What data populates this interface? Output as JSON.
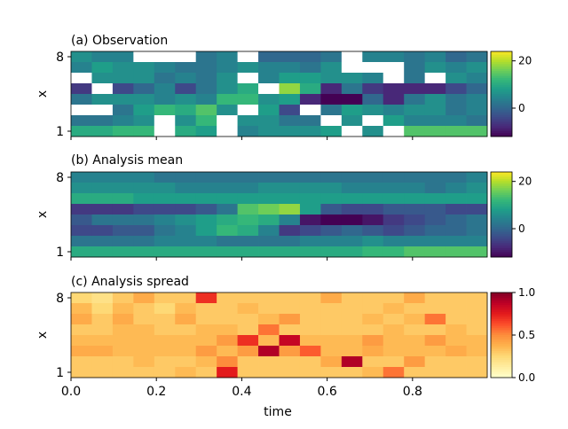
{
  "chart_data": [
    {
      "type": "heatmap",
      "title": "(a) Observation",
      "ylabel": "x",
      "xlabel": "",
      "y_tick_labels": [
        "8",
        "1"
      ],
      "x_tick_labels": [],
      "colormap": "viridis",
      "colorbar": {
        "ticks": [
          "20",
          "0"
        ],
        "tick_values": [
          20,
          0
        ],
        "range": [
          -12,
          24
        ]
      },
      "missing_color": "#ffffff",
      "x_count": 20,
      "y_count": 8,
      "grid": false,
      "values": [
        [
          6,
          4,
          4,
          null,
          null,
          null,
          2,
          4,
          null,
          0,
          0,
          0,
          2,
          null,
          4,
          4,
          2,
          4,
          0,
          2
        ],
        [
          4,
          8,
          6,
          6,
          4,
          2,
          2,
          4,
          6,
          4,
          4,
          2,
          6,
          null,
          null,
          null,
          2,
          6,
          4,
          6
        ],
        [
          null,
          6,
          6,
          6,
          2,
          4,
          2,
          6,
          null,
          4,
          8,
          8,
          6,
          6,
          4,
          null,
          2,
          null,
          6,
          4
        ],
        [
          -6,
          null,
          -4,
          0,
          4,
          -4,
          2,
          6,
          10,
          null,
          18,
          10,
          -8,
          2,
          -6,
          -8,
          -8,
          -8,
          -4,
          0
        ],
        [
          2,
          6,
          6,
          6,
          4,
          6,
          4,
          12,
          12,
          6,
          8,
          -8,
          -12,
          -12,
          0,
          -8,
          2,
          6,
          2,
          4
        ],
        [
          null,
          null,
          2,
          8,
          12,
          10,
          14,
          6,
          null,
          8,
          -4,
          null,
          2,
          8,
          6,
          4,
          6,
          6,
          2,
          4
        ],
        [
          2,
          2,
          4,
          6,
          null,
          6,
          12,
          null,
          6,
          6,
          2,
          2,
          null,
          6,
          null,
          8,
          4,
          4,
          4,
          2
        ],
        [
          10,
          10,
          12,
          12,
          null,
          10,
          8,
          null,
          4,
          6,
          6,
          6,
          8,
          null,
          6,
          null,
          14,
          14,
          14,
          14
        ]
      ]
    },
    {
      "type": "heatmap",
      "title": "(b) Analysis mean",
      "ylabel": "x",
      "xlabel": "",
      "y_tick_labels": [
        "8",
        "1"
      ],
      "x_tick_labels": [],
      "colormap": "viridis",
      "colorbar": {
        "ticks": [
          "20",
          "0"
        ],
        "tick_values": [
          20,
          0
        ],
        "range": [
          -12,
          24
        ]
      },
      "missing_color": "#ffffff",
      "x_count": 20,
      "y_count": 8,
      "grid": false,
      "values": [
        [
          4,
          4,
          4,
          4,
          2,
          2,
          2,
          2,
          2,
          2,
          2,
          2,
          2,
          2,
          2,
          2,
          2,
          2,
          2,
          4
        ],
        [
          6,
          6,
          6,
          6,
          6,
          4,
          4,
          4,
          4,
          6,
          6,
          6,
          6,
          4,
          4,
          4,
          4,
          2,
          4,
          6
        ],
        [
          10,
          10,
          10,
          8,
          8,
          8,
          8,
          8,
          8,
          8,
          8,
          8,
          8,
          8,
          8,
          8,
          8,
          8,
          8,
          8
        ],
        [
          -6,
          -6,
          -6,
          -4,
          -4,
          -4,
          -2,
          2,
          14,
          16,
          18,
          8,
          -2,
          -4,
          -4,
          -2,
          -2,
          -2,
          -4,
          -4
        ],
        [
          -2,
          2,
          2,
          2,
          4,
          6,
          8,
          10,
          12,
          10,
          4,
          -10,
          -12,
          -12,
          -10,
          -6,
          -4,
          -2,
          0,
          2
        ],
        [
          -4,
          -4,
          -2,
          -2,
          2,
          4,
          8,
          12,
          10,
          4,
          -6,
          -4,
          -2,
          0,
          -2,
          -4,
          -2,
          0,
          0,
          2
        ],
        [
          2,
          2,
          2,
          2,
          4,
          4,
          4,
          2,
          2,
          2,
          2,
          4,
          4,
          4,
          6,
          4,
          4,
          4,
          4,
          4
        ],
        [
          10,
          10,
          10,
          10,
          10,
          10,
          10,
          10,
          10,
          10,
          10,
          10,
          10,
          10,
          12,
          12,
          14,
          14,
          14,
          14
        ]
      ]
    },
    {
      "type": "heatmap",
      "title": "(c) Analysis spread",
      "ylabel": "x",
      "xlabel": "time",
      "y_tick_labels": [
        "8",
        "1"
      ],
      "x_tick_labels": [
        "0.0",
        "0.2",
        "0.4",
        "0.6",
        "0.8"
      ],
      "x_tick_values": [
        0.0,
        0.2,
        0.4,
        0.6,
        0.8
      ],
      "x_range": [
        0.0,
        0.975
      ],
      "colormap": "YlOrRd",
      "colorbar": {
        "ticks": [
          "1.0",
          "0.5",
          "0.0"
        ],
        "tick_values": [
          1.0,
          0.5,
          0.0
        ],
        "range": [
          0.0,
          1.0
        ]
      },
      "x_count": 20,
      "y_count": 8,
      "grid": false,
      "values": [
        [
          0.25,
          0.2,
          0.3,
          0.4,
          0.3,
          0.3,
          0.7,
          0.3,
          0.3,
          0.3,
          0.3,
          0.3,
          0.4,
          0.3,
          0.3,
          0.3,
          0.4,
          0.3,
          0.3,
          0.3
        ],
        [
          0.35,
          0.25,
          0.35,
          0.3,
          0.25,
          0.35,
          0.3,
          0.3,
          0.35,
          0.3,
          0.3,
          0.3,
          0.3,
          0.3,
          0.3,
          0.35,
          0.3,
          0.3,
          0.3,
          0.3
        ],
        [
          0.4,
          0.3,
          0.4,
          0.3,
          0.3,
          0.4,
          0.3,
          0.3,
          0.3,
          0.35,
          0.45,
          0.3,
          0.3,
          0.3,
          0.35,
          0.3,
          0.35,
          0.55,
          0.3,
          0.3
        ],
        [
          0.3,
          0.3,
          0.35,
          0.35,
          0.3,
          0.3,
          0.35,
          0.35,
          0.3,
          0.55,
          0.3,
          0.3,
          0.3,
          0.3,
          0.3,
          0.35,
          0.3,
          0.3,
          0.35,
          0.3
        ],
        [
          0.35,
          0.35,
          0.35,
          0.35,
          0.35,
          0.35,
          0.35,
          0.45,
          0.7,
          0.35,
          0.85,
          0.35,
          0.35,
          0.35,
          0.45,
          0.35,
          0.35,
          0.45,
          0.35,
          0.35
        ],
        [
          0.4,
          0.4,
          0.35,
          0.35,
          0.35,
          0.35,
          0.45,
          0.35,
          0.45,
          0.9,
          0.45,
          0.6,
          0.35,
          0.35,
          0.4,
          0.35,
          0.35,
          0.35,
          0.4,
          0.35
        ],
        [
          0.3,
          0.3,
          0.3,
          0.35,
          0.3,
          0.3,
          0.35,
          0.5,
          0.3,
          0.3,
          0.3,
          0.3,
          0.4,
          0.9,
          0.3,
          0.3,
          0.45,
          0.3,
          0.3,
          0.3
        ],
        [
          0.3,
          0.3,
          0.3,
          0.3,
          0.3,
          0.35,
          0.3,
          0.75,
          0.3,
          0.3,
          0.3,
          0.3,
          0.3,
          0.3,
          0.35,
          0.55,
          0.3,
          0.3,
          0.3,
          0.3
        ]
      ]
    }
  ]
}
